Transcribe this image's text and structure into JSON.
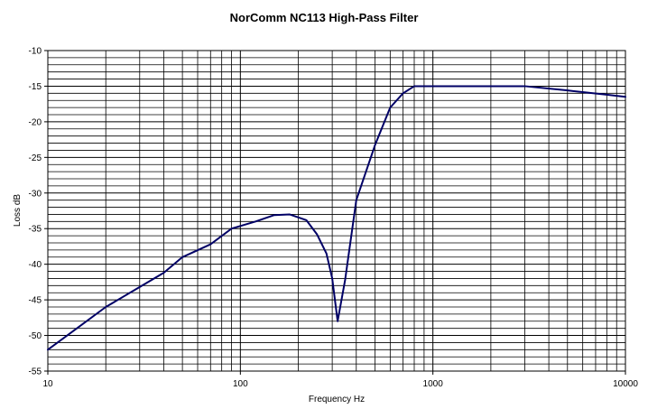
{
  "chart_data": {
    "type": "line",
    "title": "NorComm NC113 High-Pass Filter",
    "xlabel": "Frequency Hz",
    "ylabel": "Loss dB",
    "xscale": "log",
    "xlim": [
      10,
      10000
    ],
    "ylim": [
      -55,
      -10
    ],
    "x_ticks": [
      10,
      100,
      1000,
      10000
    ],
    "x_tick_labels": [
      "10",
      "100",
      "1000",
      "10000"
    ],
    "y_ticks": [
      -10,
      -15,
      -20,
      -25,
      -30,
      -35,
      -40,
      -45,
      -50,
      -55
    ],
    "y_tick_labels": [
      "-10",
      "-15",
      "-20",
      "-25",
      "-30",
      "-35",
      "-40",
      "-45",
      "-50",
      "-55"
    ],
    "grid": true,
    "legend": "none",
    "series": [
      {
        "color": "#000066",
        "x": [
          10,
          15,
          20,
          30,
          40,
          50,
          70,
          90,
          120,
          150,
          180,
          220,
          250,
          280,
          300,
          320,
          350,
          400,
          500,
          600,
          700,
          800,
          1000,
          2000,
          3000,
          5000,
          8000,
          10000
        ],
        "y": [
          -52,
          -48.5,
          -46,
          -43.2,
          -41.2,
          -39,
          -37.2,
          -35,
          -34,
          -33.1,
          -33,
          -33.8,
          -35.8,
          -38.5,
          -42,
          -48,
          -42.2,
          -31,
          -23.3,
          -18,
          -16,
          -15,
          -15,
          -15,
          -15,
          -15.6,
          -16.2,
          -16.5
        ]
      }
    ]
  }
}
